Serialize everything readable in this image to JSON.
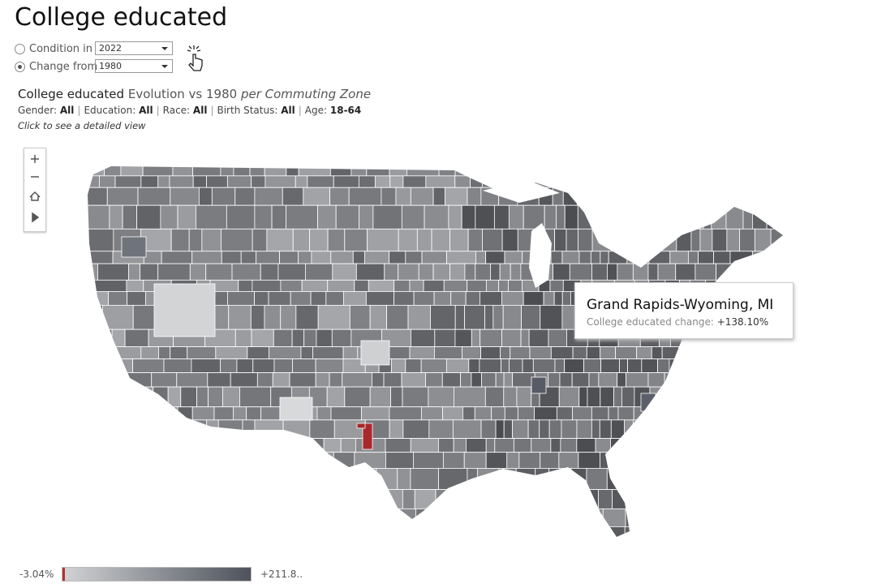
{
  "header": {
    "title": "College educated"
  },
  "controls": {
    "options": [
      {
        "label": "Condition in",
        "selected": "2022",
        "checked": false
      },
      {
        "label": "Change from",
        "selected": "1980",
        "checked": true
      }
    ]
  },
  "subtitle": {
    "measure": "College educated",
    "view": "Evolution vs 1980",
    "level": "per Commuting Zone"
  },
  "filters": {
    "separator": "|",
    "items": [
      {
        "label": "Gender:",
        "value": "All"
      },
      {
        "label": "Education:",
        "value": "All"
      },
      {
        "label": "Race:",
        "value": "All"
      },
      {
        "label": "Birth Status:",
        "value": "All"
      },
      {
        "label": "Age:",
        "value": "18-64"
      }
    ]
  },
  "hint": "Click to see a detailed view",
  "tooltip": {
    "title": "Grand Rapids-Wyoming, MI",
    "label": "College educated change:",
    "value": "+138.10%"
  },
  "legend": {
    "min": "-3.04%",
    "max": "+211.8.."
  }
}
